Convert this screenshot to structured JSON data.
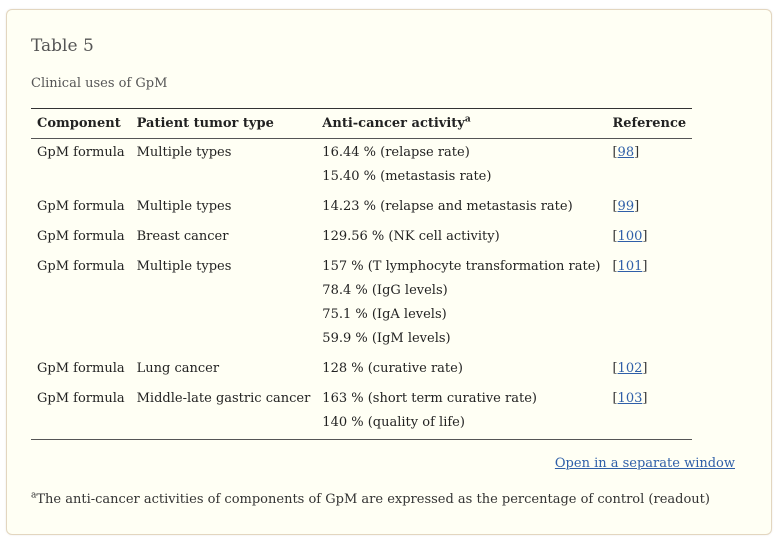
{
  "table": {
    "title": "Table 5",
    "caption": "Clinical uses of GpM",
    "headers": {
      "component": "Component",
      "tumor_type": "Patient tumor type",
      "activity": "Anti-cancer activity",
      "activity_sup": "a",
      "reference": "Reference"
    },
    "rows": [
      {
        "component": "GpM formula",
        "tumor_type": "Multiple types",
        "activities": [
          "16.44 % (relapse rate)",
          "15.40 % (metastasis rate)"
        ],
        "ref": "98"
      },
      {
        "component": "GpM formula",
        "tumor_type": "Multiple types",
        "activities": [
          "14.23 % (relapse and metastasis rate)"
        ],
        "ref": "99"
      },
      {
        "component": "GpM formula",
        "tumor_type": "Breast cancer",
        "activities": [
          "129.56 % (NK cell activity)"
        ],
        "ref": "100"
      },
      {
        "component": "GpM formula",
        "tumor_type": "Multiple types",
        "activities": [
          "157 % (T lymphocyte transformation rate)",
          "78.4 % (IgG levels)",
          "75.1 % (IgA levels)",
          "59.9 % (IgM levels)"
        ],
        "ref": "101"
      },
      {
        "component": "GpM formula",
        "tumor_type": "Lung cancer",
        "activities": [
          "128 % (curative rate)"
        ],
        "ref": "102"
      },
      {
        "component": "GpM formula",
        "tumor_type": "Middle-late gastric cancer",
        "activities": [
          "163 % (short term curative rate)",
          "140 % (quality of life)"
        ],
        "ref": "103"
      }
    ],
    "open_link": "Open in a separate window",
    "footnote_marker": "a",
    "footnote": "The anti-cancer activities of components of GpM are expressed as the percentage of control (readout)"
  }
}
